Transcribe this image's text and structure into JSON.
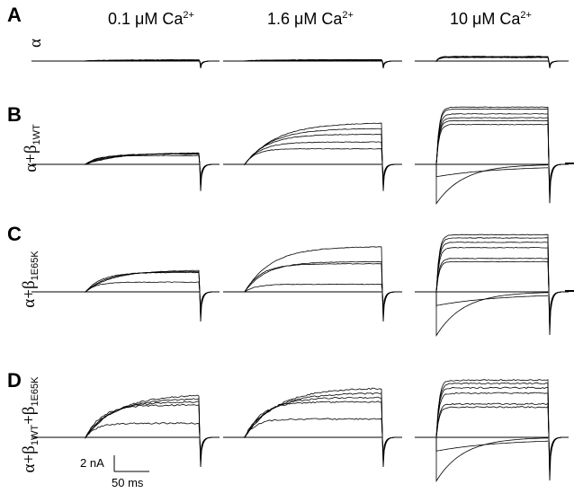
{
  "figure": {
    "panels": [
      {
        "letter": "A",
        "label_main": "α",
        "label_sub": ""
      },
      {
        "letter": "B",
        "label_main": "α+β",
        "label_sub": "1WT"
      },
      {
        "letter": "C",
        "label_main": "α+β",
        "label_sub": "1E65K"
      },
      {
        "letter": "D",
        "label_main": "α+β",
        "label_mid": "+β",
        "label_sub": "1WT",
        "label_sub2": "1E65K"
      }
    ],
    "columns": [
      {
        "conc": "0.1 μM Ca",
        "sup": "2+"
      },
      {
        "conc": "1.6 μM Ca",
        "sup": "2+"
      },
      {
        "conc": "10 μM Ca",
        "sup": "2+"
      }
    ],
    "scale_bar": {
      "current": "2 nA",
      "time": "50 ms"
    },
    "colors": {
      "ink": "#000000",
      "background": "#ffffff"
    },
    "trace_levels": {
      "A": [
        [
          0.06,
          0.07,
          0.08,
          0.09,
          0.1
        ],
        [
          0.07,
          0.08,
          0.09,
          0.1,
          0.11
        ],
        [
          0.28,
          0.3,
          0.32,
          0.34,
          0.36
        ]
      ],
      "B": [
        [
          0.18,
          0.21,
          0.22,
          0.23,
          0.24
        ],
        [
          0.32,
          0.46,
          0.62,
          0.74,
          0.86
        ],
        [
          0.82,
          0.9,
          0.96,
          1.04,
          1.14,
          1.18
        ]
      ],
      "C": [
        [
          0.18,
          0.36,
          0.38,
          0.4
        ],
        [
          0.14,
          0.52,
          0.56,
          0.84
        ],
        [
          0.56,
          0.62,
          0.82,
          0.92,
          1.0,
          1.06
        ]
      ],
      "D": [
        [
          0.26,
          0.6,
          0.66,
          0.72,
          0.8
        ],
        [
          0.34,
          0.66,
          0.74,
          0.82,
          0.92
        ],
        [
          0.56,
          0.62,
          0.82,
          0.92,
          1.0,
          1.06
        ]
      ]
    }
  }
}
